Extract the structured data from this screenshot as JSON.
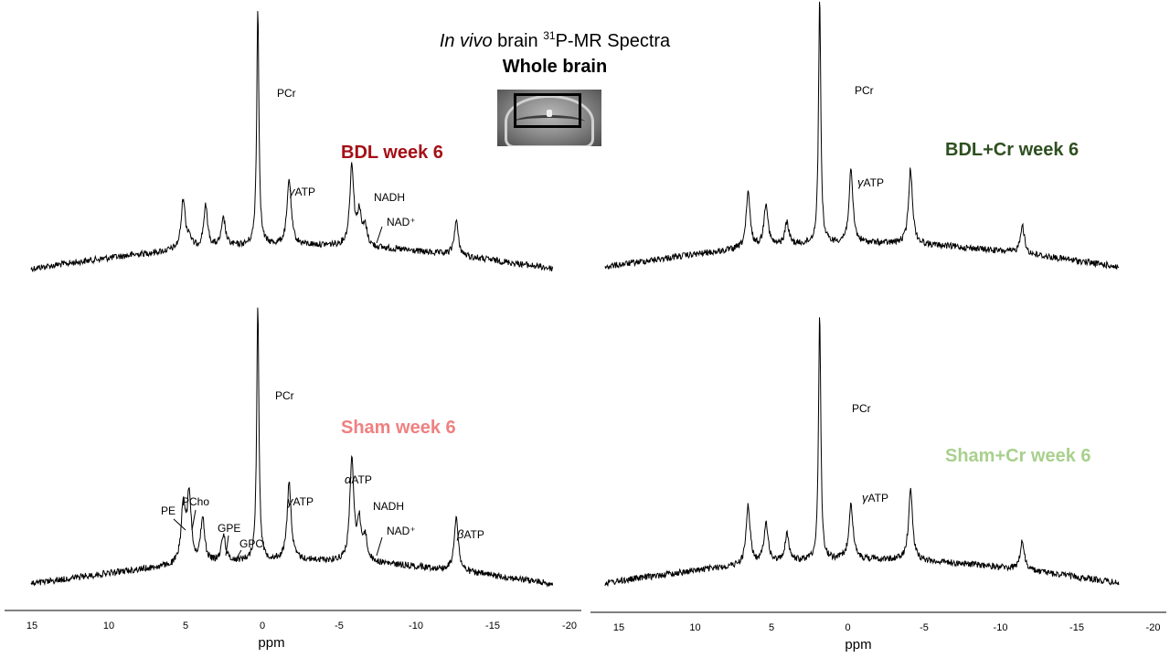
{
  "title": {
    "prefix": "In vivo",
    "middle": " brain ",
    "isotope": "31",
    "suffix": "P-MR Spectra",
    "subtitle": "Whole brain"
  },
  "colors": {
    "bdl": "#a50f15",
    "bdl_cr": "#2e4f20",
    "sham": "#f08080",
    "sham_cr": "#a8d08d",
    "trace": "#000000"
  },
  "chart_data": [
    {
      "type": "line",
      "label": "BDL week 6",
      "xlabel": "",
      "xlim": [
        15.2,
        -19.8
      ],
      "xticks": [
        15,
        10,
        5,
        0,
        -5,
        -10,
        -15,
        -20
      ],
      "series": [
        {
          "values": [
            [
              15.2,
              0
            ],
            [
              5.0,
              55
            ],
            [
              4.6,
              12
            ],
            [
              3.5,
              45
            ],
            [
              2.3,
              30
            ],
            [
              0,
              258
            ],
            [
              -2.1,
              72
            ],
            [
              -6.3,
              88
            ],
            [
              -6.8,
              35
            ],
            [
              -7.2,
              20
            ],
            [
              -13.3,
              38
            ],
            [
              -19.8,
              0
            ]
          ]
        }
      ],
      "annotations": [
        "PCr",
        "γATP",
        "NADH",
        "NAD⁺"
      ]
    },
    {
      "type": "line",
      "label": "BDL+Cr week 6",
      "xlabel": "ppm",
      "xlim": [
        15.2,
        -19.3
      ],
      "xticks": [
        15,
        10,
        5,
        0,
        -5,
        -10,
        -15,
        -20
      ],
      "series": [
        {
          "values": [
            [
              15.2,
              0
            ],
            [
              5.6,
              60
            ],
            [
              4.4,
              48
            ],
            [
              3.0,
              25
            ],
            [
              0.8,
              272
            ],
            [
              -1.3,
              78
            ],
            [
              -5.3,
              82
            ],
            [
              -12.8,
              32
            ],
            [
              -19.3,
              0
            ]
          ]
        }
      ],
      "annotations": [
        "PCr",
        "γATP"
      ]
    },
    {
      "type": "line",
      "label": "Sham week 6",
      "xlabel": "ppm",
      "xlim": [
        15.2,
        -19.8
      ],
      "xticks": [
        15,
        10,
        5,
        0,
        -5,
        -10,
        -15,
        -20
      ],
      "series": [
        {
          "values": [
            [
              15.2,
              0
            ],
            [
              5.0,
              65
            ],
            [
              4.6,
              75
            ],
            [
              3.7,
              48
            ],
            [
              2.3,
              30
            ],
            [
              0,
              280
            ],
            [
              -2.1,
              85
            ],
            [
              -6.3,
              110
            ],
            [
              -6.8,
              40
            ],
            [
              -7.2,
              25
            ],
            [
              -13.3,
              60
            ],
            [
              -19.8,
              0
            ]
          ]
        }
      ],
      "annotations": [
        "PCr",
        "γATP",
        "αATP",
        "NADH",
        "NAD⁺",
        "βATP",
        "PE",
        "PCho",
        "GPE",
        "GPC"
      ]
    },
    {
      "type": "line",
      "label": "Sham+Cr week 6",
      "xlabel": "ppm",
      "xlim": [
        15.2,
        -19.3
      ],
      "xticks": [
        15,
        10,
        5,
        0,
        -5,
        -10,
        -15,
        -20
      ],
      "series": [
        {
          "values": [
            [
              15.2,
              0
            ],
            [
              5.6,
              65
            ],
            [
              4.4,
              45
            ],
            [
              3.0,
              30
            ],
            [
              0.8,
              272
            ],
            [
              -1.3,
              62
            ],
            [
              -5.3,
              78
            ],
            [
              -12.8,
              32
            ],
            [
              -19.3,
              0
            ]
          ]
        }
      ],
      "annotations": [
        "PCr",
        "γATP"
      ]
    }
  ]
}
